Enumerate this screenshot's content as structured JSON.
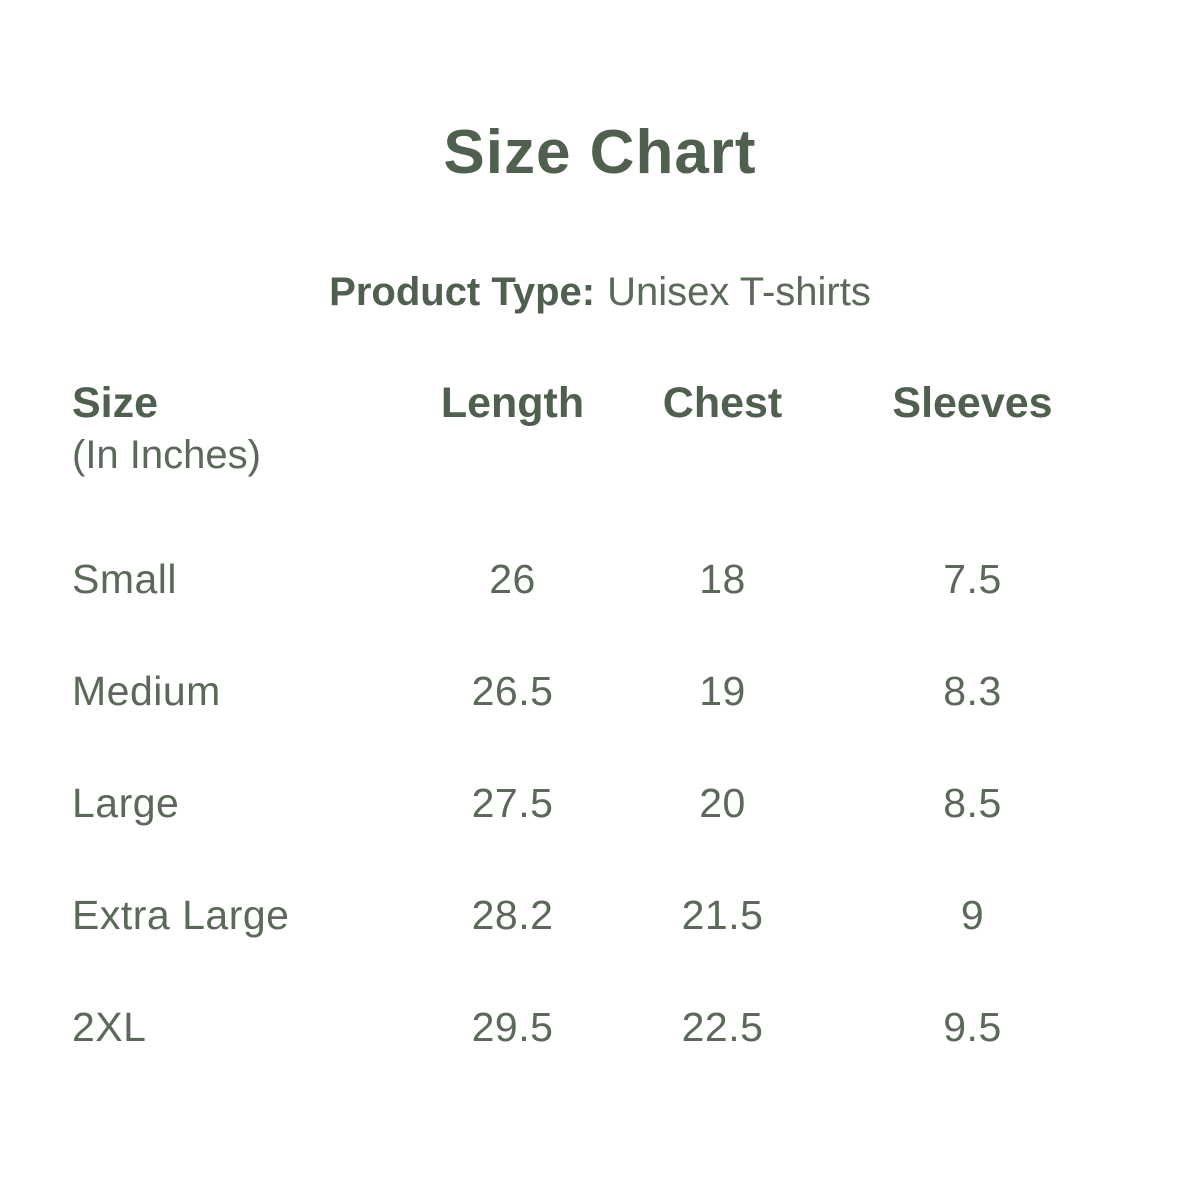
{
  "page": {
    "title": "Size Chart",
    "product_type_label": "Product Type:",
    "product_type_value": "Unisex T-shirts"
  },
  "table": {
    "headers": {
      "size": "Size",
      "size_unit": "(In Inches)",
      "length": "Length",
      "chest": "Chest",
      "sleeves": "Sleeves"
    },
    "rows": [
      {
        "size": "Small",
        "length": "26",
        "chest": "18",
        "sleeves": "7.5"
      },
      {
        "size": "Medium",
        "length": "26.5",
        "chest": "19",
        "sleeves": "8.3"
      },
      {
        "size": "Large",
        "length": "27.5",
        "chest": "20",
        "sleeves": "8.5"
      },
      {
        "size": "Extra Large",
        "length": "28.2",
        "chest": "21.5",
        "sleeves": "9"
      },
      {
        "size": "2XL",
        "length": "29.5",
        "chest": "22.5",
        "sleeves": "9.5"
      }
    ]
  },
  "colors": {
    "background": "#ffffff",
    "heading_text": "#50604e",
    "body_text": "#5c695a"
  },
  "chart_data": {
    "type": "table",
    "title": "Size Chart",
    "subtitle": "Product Type: Unisex T-shirts",
    "unit": "Inches",
    "columns": [
      "Size (In Inches)",
      "Length",
      "Chest",
      "Sleeves"
    ],
    "rows": [
      [
        "Small",
        26,
        18,
        7.5
      ],
      [
        "Medium",
        26.5,
        19,
        8.3
      ],
      [
        "Large",
        27.5,
        20,
        8.5
      ],
      [
        "Extra Large",
        28.2,
        21.5,
        9
      ],
      [
        "2XL",
        29.5,
        22.5,
        9.5
      ]
    ]
  }
}
